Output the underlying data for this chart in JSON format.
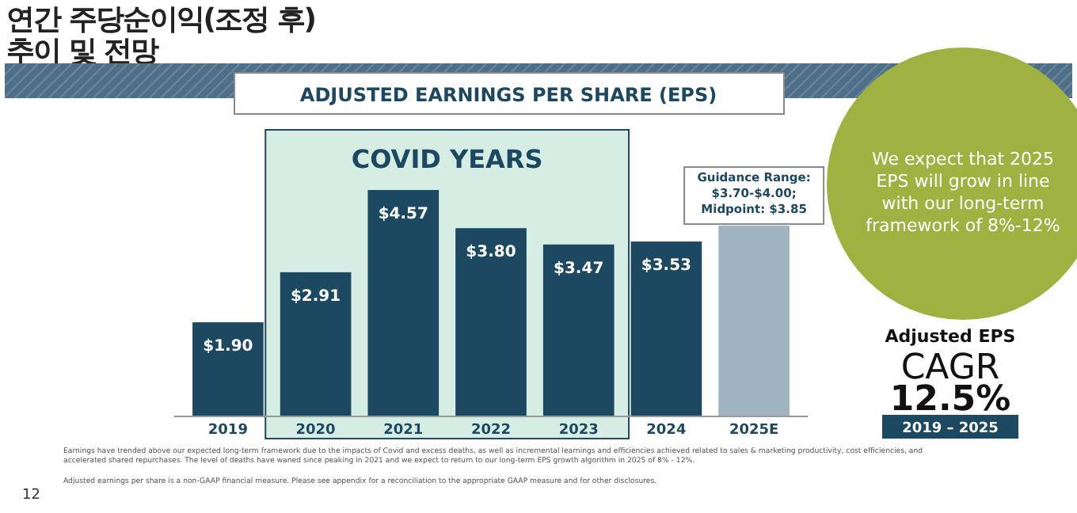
{
  "chart_data": {
    "type": "bar",
    "title": "연간 주당순이익(조정 후)\n추이 및 전망",
    "subtitle": "ADJUSTED EARNINGS PER SHARE (EPS)",
    "categories": [
      "2019",
      "2020",
      "2021",
      "2022",
      "2023",
      "2024",
      "2025E"
    ],
    "values": [
      1.9,
      2.91,
      4.57,
      3.8,
      3.47,
      3.53,
      3.85
    ],
    "colors": [
      "#1c4861",
      "#1c4861",
      "#1c4861",
      "#1c4861",
      "#1c4861",
      "#1c4861",
      "#9fb3c0"
    ],
    "value_labels": [
      "$1.90",
      "$2.91",
      "$4.57",
      "$3.80",
      "$3.47",
      "$3.53",
      null
    ],
    "tick_labels": "x",
    "bands": [
      {
        "axis": "x",
        "from": "2020",
        "to": "2023",
        "label": "COVID YEARS",
        "color": "#d6ede4"
      }
    ],
    "annotations": [
      {
        "text": "Guidance Range:\n$3.70-$4.00;\nMidpoint: $3.85",
        "x": "2025E",
        "y": 3.85
      },
      "We expect that 2025\nEPS will grow in line\nwith our long-term\nframework of 8%-12%",
      "Adjusted EPS",
      "CAGR",
      "12.5%",
      "2019 – 2025",
      "Earnings have trended above our expected long-term framework due to the impacts of Covid and excess deaths, as well as incremental learnings and efficiencies achieved related to sales & marketing productivity, cost efficiencies, and\naccelerated shared repurchases. The level of deaths have waned since peaking in 2021 and we expect to return to our long-term EPS growth algorithm in 2025 of 8% - 12%.",
      "Adjusted earnings per share is a non-GAAP financial measure. Please see appendix for a reconciliation to the appropriate GAAP measure and for other disclosures.",
      "12"
    ]
  }
}
